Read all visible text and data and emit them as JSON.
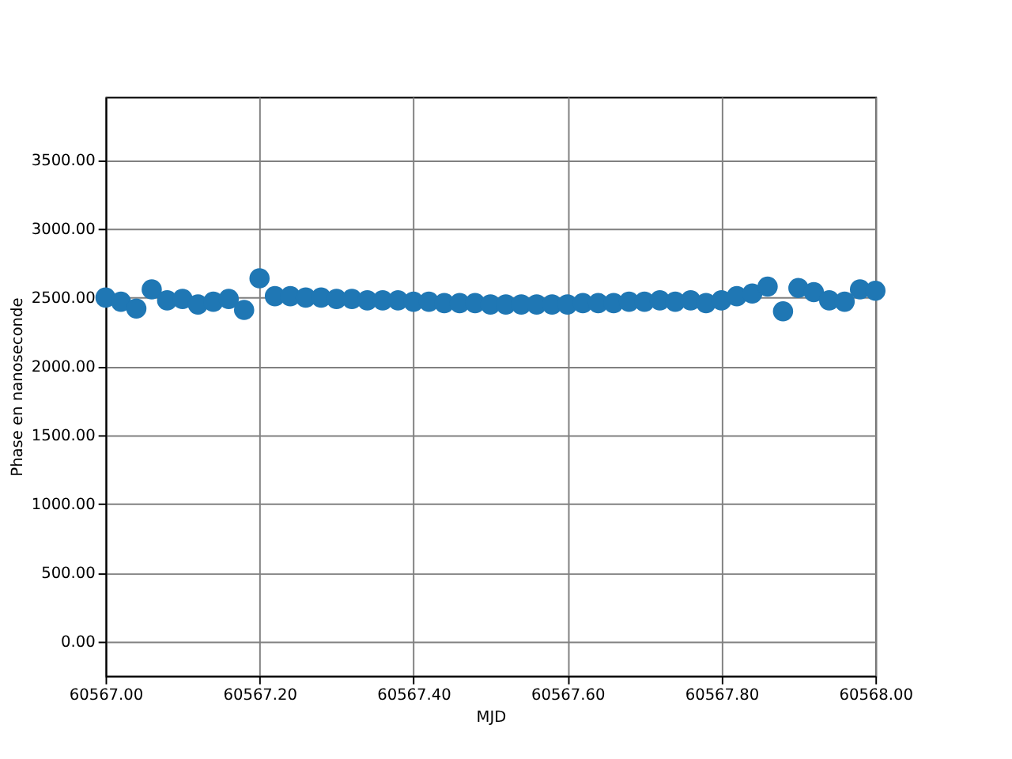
{
  "chart_data": {
    "type": "scatter",
    "xlabel": "MJD",
    "ylabel": "Phase en nanoseconde",
    "marker": "circle",
    "grid": true,
    "xlim": [
      60567.0,
      60568.0
    ],
    "xticks": [
      {
        "value": 60567.0,
        "label": "60567.00"
      },
      {
        "value": 60567.2,
        "label": "60567.20"
      },
      {
        "value": 60567.4,
        "label": "60567.40"
      },
      {
        "value": 60567.6,
        "label": "60567.60"
      },
      {
        "value": 60567.8,
        "label": "60567.80"
      },
      {
        "value": 60568.0,
        "label": "60568.00"
      }
    ],
    "ylim": [
      -250,
      3960
    ],
    "yticks": [
      {
        "value": 0,
        "label": "0.00"
      },
      {
        "value": 500,
        "label": "500.00"
      },
      {
        "value": 1000,
        "label": "1000.00"
      },
      {
        "value": 1500,
        "label": "1500.00"
      },
      {
        "value": 2000,
        "label": "2000.00"
      },
      {
        "value": 2500,
        "label": "2500.00"
      },
      {
        "value": 3000,
        "label": "3000.00"
      },
      {
        "value": 3500,
        "label": "3500.00"
      }
    ],
    "x": [
      60567.0,
      60567.02,
      60567.04,
      60567.06,
      60567.08,
      60567.1,
      60567.12,
      60567.14,
      60567.16,
      60567.18,
      60567.2,
      60567.22,
      60567.24,
      60567.26,
      60567.28,
      60567.3,
      60567.32,
      60567.34,
      60567.36,
      60567.38,
      60567.4,
      60567.42,
      60567.44,
      60567.46,
      60567.48,
      60567.5,
      60567.52,
      60567.54,
      60567.56,
      60567.58,
      60567.6,
      60567.62,
      60567.64,
      60567.66,
      60567.68,
      60567.7,
      60567.72,
      60567.74,
      60567.76,
      60567.78,
      60567.8,
      60567.82,
      60567.84,
      60567.86,
      60567.88,
      60567.9,
      60567.92,
      60567.94,
      60567.96,
      60567.98,
      60568.0
    ],
    "series": [
      {
        "color": "#1f77b4",
        "values": [
          2500,
          2470,
          2420,
          2560,
          2480,
          2490,
          2450,
          2470,
          2490,
          2410,
          2640,
          2510,
          2510,
          2500,
          2500,
          2490,
          2490,
          2480,
          2480,
          2480,
          2470,
          2470,
          2460,
          2460,
          2460,
          2450,
          2450,
          2450,
          2450,
          2450,
          2450,
          2460,
          2460,
          2460,
          2470,
          2470,
          2480,
          2470,
          2480,
          2460,
          2480,
          2510,
          2530,
          2580,
          2400,
          2570,
          2540,
          2480,
          2470,
          2560,
          2550
        ]
      }
    ]
  }
}
